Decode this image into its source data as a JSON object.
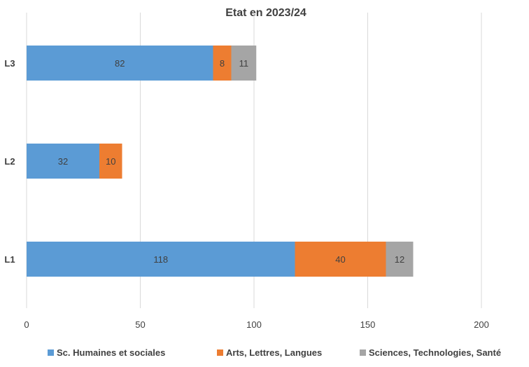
{
  "chart_data": {
    "type": "bar",
    "orientation": "horizontal",
    "stacked": true,
    "title": "Etat en 2023/24",
    "categories": [
      "L1",
      "L2",
      "L3"
    ],
    "series": [
      {
        "name": "Sc. Humaines et sociales",
        "color": "#5b9bd5",
        "values": [
          118,
          32,
          82
        ]
      },
      {
        "name": "Arts, Lettres, Langues",
        "color": "#ed7d31",
        "values": [
          40,
          10,
          8
        ]
      },
      {
        "name": "Sciences, Technologies, Santé",
        "color": "#a5a5a5",
        "values": [
          12,
          null,
          11
        ]
      }
    ],
    "xlim": [
      0,
      200
    ],
    "xticks": [
      0,
      50,
      100,
      150,
      200
    ],
    "grid": true,
    "legend_position": "bottom"
  }
}
